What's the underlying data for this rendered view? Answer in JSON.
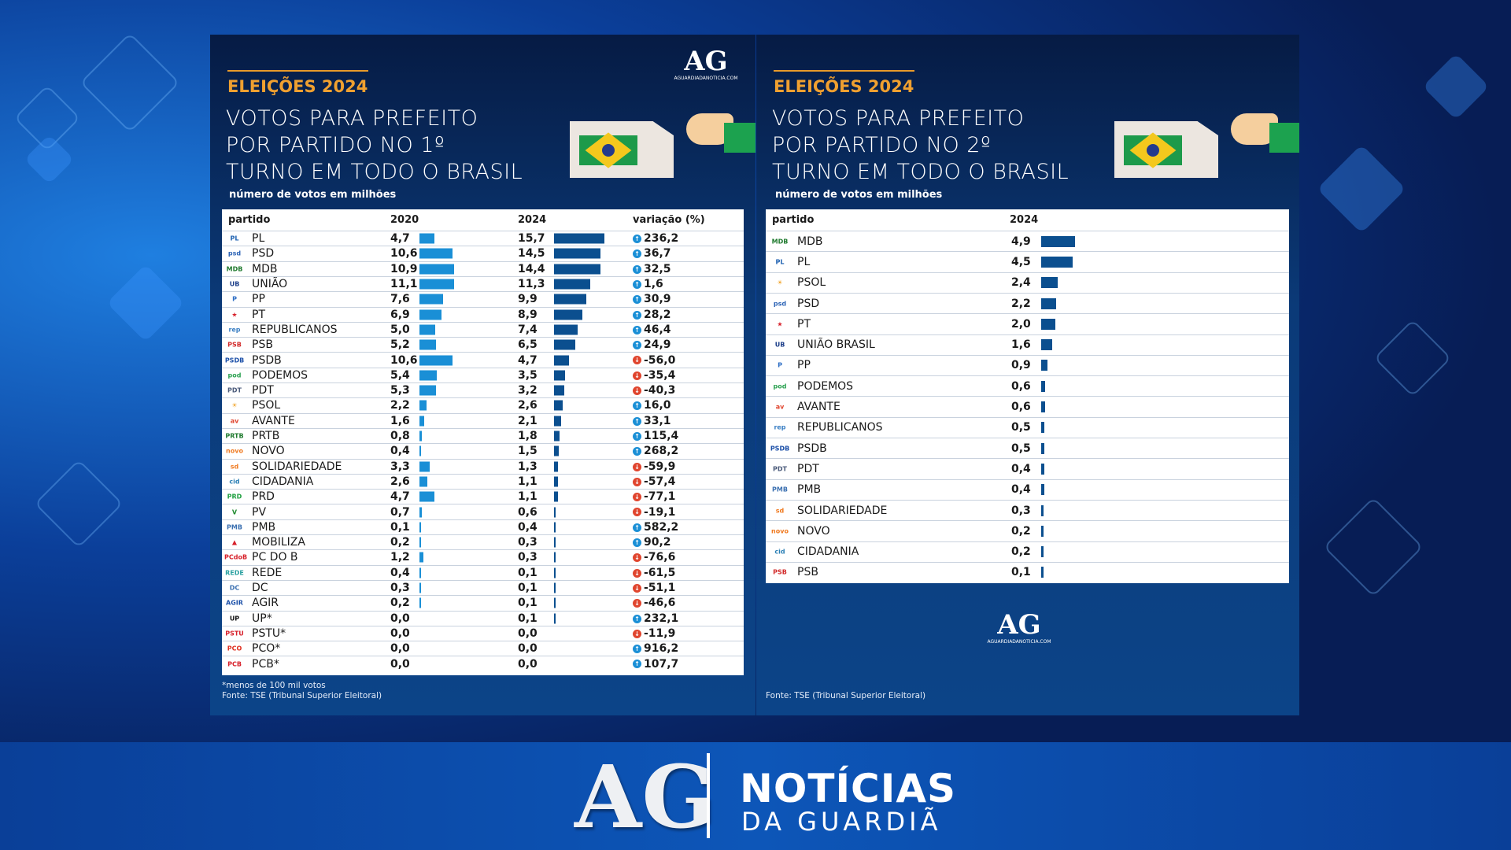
{
  "colors": {
    "bar2020": "#1a8fd6",
    "bar2024": "#0b4f8f",
    "up": "#1a8fd6",
    "down": "#e0452e",
    "accent": "#f0a030"
  },
  "panel1": {
    "kicker": "ELEIÇÕES 2024",
    "title_lines": [
      "VOTOS PARA PREFEITO",
      "POR PARTIDO NO 1º",
      "TURNO EM TODO O BRASIL"
    ],
    "subtitle": "número de votos em milhões",
    "site_logo": "AG",
    "site_url": "AGUARDIADANOTICIA.COM",
    "footnote": "*menos de 100 mil votos",
    "source": "Fonte: TSE (Tribunal Superior Eleitoral)"
  },
  "panel2": {
    "kicker": "ELEIÇÕES 2024",
    "title_lines": [
      "VOTOS PARA PREFEITO",
      "POR PARTIDO NO 2º",
      "TURNO EM TODO O BRASIL"
    ],
    "subtitle": "número de votos em milhões",
    "site_logo": "AG",
    "site_url": "AGUARDIADANOTICIA.COM",
    "source": "Fonte: TSE (Tribunal Superior Eleitoral)"
  },
  "brand": {
    "logo": "AG",
    "line1": "NOTÍCIAS",
    "line2": "DA GUARDIÃ"
  },
  "chart_data": [
    {
      "type": "table",
      "title": "VOTOS PARA PREFEITO POR PARTIDO NO 1º TURNO EM TODO O BRASIL",
      "unit": "número de votos em milhões",
      "columns": [
        "partido",
        "2020",
        "2024",
        "variação (%)"
      ],
      "rows": [
        {
          "party": "PL",
          "logo": "PL",
          "logo_color": "#1b5fb0",
          "v2020": "4,7",
          "v2024": "15,7",
          "var": "236,2",
          "dir": "up"
        },
        {
          "party": "PSD",
          "logo": "psd",
          "logo_color": "#2a62b5",
          "v2020": "10,6",
          "v2024": "14,5",
          "var": "36,7",
          "dir": "up"
        },
        {
          "party": "MDB",
          "logo": "MDB",
          "logo_color": "#1f7a2e",
          "v2020": "10,9",
          "v2024": "14,4",
          "var": "32,5",
          "dir": "up"
        },
        {
          "party": "UNIÃO",
          "logo": "UB",
          "logo_color": "#1d3f8a",
          "v2020": "11,1",
          "v2024": "11,3",
          "var": "1,6",
          "dir": "up"
        },
        {
          "party": "PP",
          "logo": "P",
          "logo_color": "#2b6cc4",
          "v2020": "7,6",
          "v2024": "9,9",
          "var": "30,9",
          "dir": "up"
        },
        {
          "party": "PT",
          "logo": "★",
          "logo_color": "#d7202a",
          "v2020": "6,9",
          "v2024": "8,9",
          "var": "28,2",
          "dir": "up"
        },
        {
          "party": "REPUBLICANOS",
          "logo": "rep",
          "logo_color": "#3a7fc4",
          "v2020": "5,0",
          "v2024": "7,4",
          "var": "46,4",
          "dir": "up"
        },
        {
          "party": "PSB",
          "logo": "PSB",
          "logo_color": "#d22a2a",
          "v2020": "5,2",
          "v2024": "6,5",
          "var": "24,9",
          "dir": "up"
        },
        {
          "party": "PSDB",
          "logo": "PSDB",
          "logo_color": "#1b4fa8",
          "v2020": "10,6",
          "v2024": "4,7",
          "var": "-56,0",
          "dir": "down"
        },
        {
          "party": "PODEMOS",
          "logo": "pod",
          "logo_color": "#2aa150",
          "v2020": "5,4",
          "v2024": "3,5",
          "var": "-35,4",
          "dir": "down"
        },
        {
          "party": "PDT",
          "logo": "PDT",
          "logo_color": "#4a5a7a",
          "v2020": "5,3",
          "v2024": "3,2",
          "var": "-40,3",
          "dir": "down"
        },
        {
          "party": "PSOL",
          "logo": "☀",
          "logo_color": "#f0a020",
          "v2020": "2,2",
          "v2024": "2,6",
          "var": "16,0",
          "dir": "up"
        },
        {
          "party": "AVANTE",
          "logo": "av",
          "logo_color": "#e0452e",
          "v2020": "1,6",
          "v2024": "2,1",
          "var": "33,1",
          "dir": "up"
        },
        {
          "party": "PRTB",
          "logo": "PRTB",
          "logo_color": "#1f7a2e",
          "v2020": "0,8",
          "v2024": "1,8",
          "var": "115,4",
          "dir": "up"
        },
        {
          "party": "NOVO",
          "logo": "novo",
          "logo_color": "#f07a20",
          "v2020": "0,4",
          "v2024": "1,5",
          "var": "268,2",
          "dir": "up"
        },
        {
          "party": "SOLIDARIEDADE",
          "logo": "sd",
          "logo_color": "#f07a20",
          "v2020": "3,3",
          "v2024": "1,3",
          "var": "-59,9",
          "dir": "down"
        },
        {
          "party": "CIDADANIA",
          "logo": "cid",
          "logo_color": "#2a7fb5",
          "v2020": "2,6",
          "v2024": "1,1",
          "var": "-57,4",
          "dir": "down"
        },
        {
          "party": "PRD",
          "logo": "PRD",
          "logo_color": "#1fa040",
          "v2020": "4,7",
          "v2024": "1,1",
          "var": "-77,1",
          "dir": "down"
        },
        {
          "party": "PV",
          "logo": "V",
          "logo_color": "#1f8a2e",
          "v2020": "0,7",
          "v2024": "0,6",
          "var": "-19,1",
          "dir": "down"
        },
        {
          "party": "PMB",
          "logo": "PMB",
          "logo_color": "#3a6fb0",
          "v2020": "0,1",
          "v2024": "0,4",
          "var": "582,2",
          "dir": "up"
        },
        {
          "party": "MOBILIZA",
          "logo": "▲",
          "logo_color": "#d7202a",
          "v2020": "0,2",
          "v2024": "0,3",
          "var": "90,2",
          "dir": "up"
        },
        {
          "party": "PC DO B",
          "logo": "PCdoB",
          "logo_color": "#d7202a",
          "v2020": "1,2",
          "v2024": "0,3",
          "var": "-76,6",
          "dir": "down"
        },
        {
          "party": "REDE",
          "logo": "REDE",
          "logo_color": "#2aa0a0",
          "v2020": "0,4",
          "v2024": "0,1",
          "var": "-61,5",
          "dir": "down"
        },
        {
          "party": "DC",
          "logo": "DC",
          "logo_color": "#3a6fb0",
          "v2020": "0,3",
          "v2024": "0,1",
          "var": "-51,1",
          "dir": "down"
        },
        {
          "party": "AGIR",
          "logo": "AGIR",
          "logo_color": "#1b4fa8",
          "v2020": "0,2",
          "v2024": "0,1",
          "var": "-46,6",
          "dir": "down"
        },
        {
          "party": "UP*",
          "logo": "UP",
          "logo_color": "#111111",
          "v2020": "0,0",
          "v2024": "0,1",
          "var": "232,1",
          "dir": "up"
        },
        {
          "party": "PSTU*",
          "logo": "PSTU",
          "logo_color": "#d7202a",
          "v2020": "0,0",
          "v2024": "0,0",
          "var": "-11,9",
          "dir": "down"
        },
        {
          "party": "PCO*",
          "logo": "PCO",
          "logo_color": "#e03020",
          "v2020": "0,0",
          "v2024": "0,0",
          "var": "916,2",
          "dir": "up"
        },
        {
          "party": "PCB*",
          "logo": "PCB",
          "logo_color": "#d7202a",
          "v2020": "0,0",
          "v2024": "0,0",
          "var": "107,7",
          "dir": "up"
        }
      ]
    },
    {
      "type": "table",
      "title": "VOTOS PARA PREFEITO POR PARTIDO NO 2º TURNO EM TODO O BRASIL",
      "unit": "número de votos em milhões",
      "columns": [
        "partido",
        "2024"
      ],
      "rows": [
        {
          "party": "MDB",
          "logo": "MDB",
          "logo_color": "#1f7a2e",
          "v2024": "4,9"
        },
        {
          "party": "PL",
          "logo": "PL",
          "logo_color": "#1b5fb0",
          "v2024": "4,5"
        },
        {
          "party": "PSOL",
          "logo": "☀",
          "logo_color": "#f0a020",
          "v2024": "2,4"
        },
        {
          "party": "PSD",
          "logo": "psd",
          "logo_color": "#2a62b5",
          "v2024": "2,2"
        },
        {
          "party": "PT",
          "logo": "★",
          "logo_color": "#d7202a",
          "v2024": "2,0"
        },
        {
          "party": "UNIÃO BRASIL",
          "logo": "UB",
          "logo_color": "#1d3f8a",
          "v2024": "1,6"
        },
        {
          "party": "PP",
          "logo": "P",
          "logo_color": "#2b6cc4",
          "v2024": "0,9"
        },
        {
          "party": "PODEMOS",
          "logo": "pod",
          "logo_color": "#2aa150",
          "v2024": "0,6"
        },
        {
          "party": "AVANTE",
          "logo": "av",
          "logo_color": "#e0452e",
          "v2024": "0,6"
        },
        {
          "party": "REPUBLICANOS",
          "logo": "rep",
          "logo_color": "#3a7fc4",
          "v2024": "0,5"
        },
        {
          "party": "PSDB",
          "logo": "PSDB",
          "logo_color": "#1b4fa8",
          "v2024": "0,5"
        },
        {
          "party": "PDT",
          "logo": "PDT",
          "logo_color": "#4a5a7a",
          "v2024": "0,4"
        },
        {
          "party": "PMB",
          "logo": "PMB",
          "logo_color": "#3a6fb0",
          "v2024": "0,4"
        },
        {
          "party": "SOLIDARIEDADE",
          "logo": "sd",
          "logo_color": "#f07a20",
          "v2024": "0,3"
        },
        {
          "party": "NOVO",
          "logo": "novo",
          "logo_color": "#f07a20",
          "v2024": "0,2"
        },
        {
          "party": "CIDADANIA",
          "logo": "cid",
          "logo_color": "#2a7fb5",
          "v2024": "0,2"
        },
        {
          "party": "PSB",
          "logo": "PSB",
          "logo_color": "#d22a2a",
          "v2024": "0,1"
        }
      ]
    }
  ]
}
